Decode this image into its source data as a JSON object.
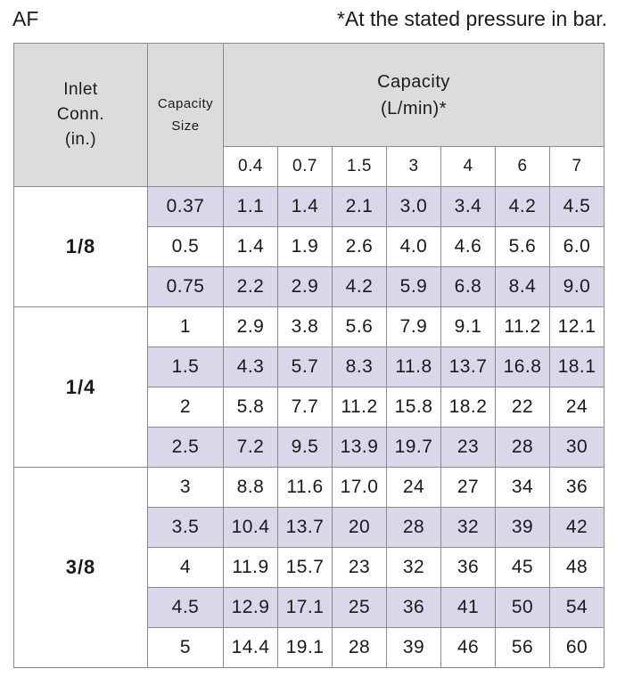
{
  "model": "AF",
  "note": "*At the stated pressure in bar.",
  "headers": {
    "inlet": [
      "Inlet",
      "Conn.",
      "(in.)"
    ],
    "capacity_size": [
      "Capacity",
      "Size"
    ],
    "capacity": [
      "Capacity",
      "(L/min)*"
    ]
  },
  "pressures": [
    "0.4",
    "0.7",
    "1.5",
    "3",
    "4",
    "6",
    "7"
  ],
  "groups": [
    {
      "conn": "1/8",
      "rows": [
        {
          "size": "0.37",
          "values": [
            "1.1",
            "1.4",
            "2.1",
            "3.0",
            "3.4",
            "4.2",
            "4.5"
          ]
        },
        {
          "size": "0.5",
          "values": [
            "1.4",
            "1.9",
            "2.6",
            "4.0",
            "4.6",
            "5.6",
            "6.0"
          ]
        },
        {
          "size": "0.75",
          "values": [
            "2.2",
            "2.9",
            "4.2",
            "5.9",
            "6.8",
            "8.4",
            "9.0"
          ]
        }
      ]
    },
    {
      "conn": "1/4",
      "rows": [
        {
          "size": "1",
          "values": [
            "2.9",
            "3.8",
            "5.6",
            "7.9",
            "9.1",
            "11.2",
            "12.1"
          ]
        },
        {
          "size": "1.5",
          "values": [
            "4.3",
            "5.7",
            "8.3",
            "11.8",
            "13.7",
            "16.8",
            "18.1"
          ]
        },
        {
          "size": "2",
          "values": [
            "5.8",
            "7.7",
            "11.2",
            "15.8",
            "18.2",
            "22",
            "24"
          ]
        },
        {
          "size": "2.5",
          "values": [
            "7.2",
            "9.5",
            "13.9",
            "19.7",
            "23",
            "28",
            "30"
          ]
        }
      ]
    },
    {
      "conn": "3/8",
      "rows": [
        {
          "size": "3",
          "values": [
            "8.8",
            "11.6",
            "17.0",
            "24",
            "27",
            "34",
            "36"
          ]
        },
        {
          "size": "3.5",
          "values": [
            "10.4",
            "13.7",
            "20",
            "28",
            "32",
            "39",
            "42"
          ]
        },
        {
          "size": "4",
          "values": [
            "11.9",
            "15.7",
            "23",
            "32",
            "36",
            "45",
            "48"
          ]
        },
        {
          "size": "4.5",
          "values": [
            "12.9",
            "17.1",
            "25",
            "36",
            "41",
            "50",
            "54"
          ]
        },
        {
          "size": "5",
          "values": [
            "14.4",
            "19.1",
            "28",
            "39",
            "46",
            "56",
            "60"
          ]
        }
      ]
    }
  ],
  "colors": {
    "header_gray": "#dcdcdc",
    "row_highlight": "#d9d7ea",
    "border": "#8a8a8a"
  }
}
